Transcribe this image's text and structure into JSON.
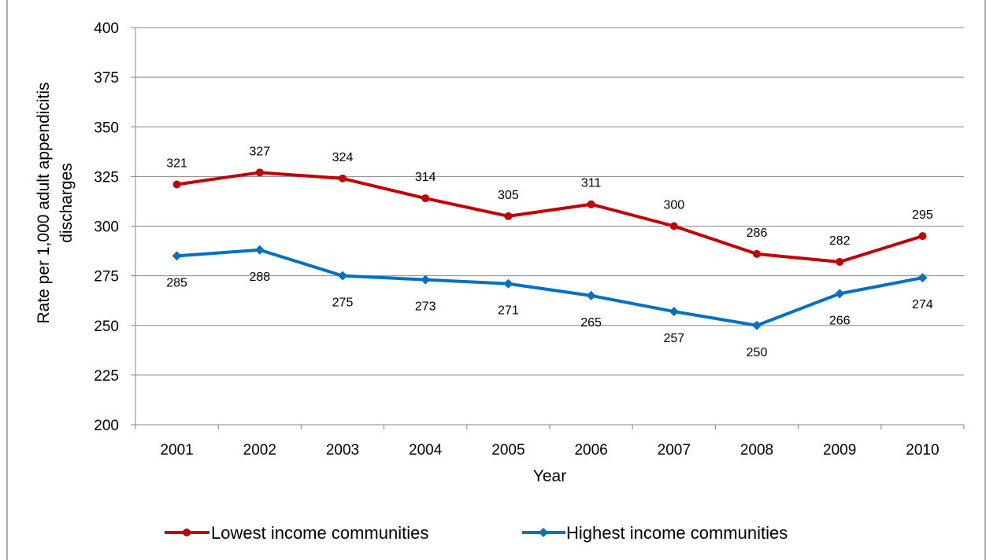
{
  "chart_data": {
    "type": "line",
    "title": "",
    "xlabel": "Year",
    "ylabel_lines": [
      "Rate per 1,000 adult appendicitis",
      "discharges"
    ],
    "categories": [
      "2001",
      "2002",
      "2003",
      "2004",
      "2005",
      "2006",
      "2007",
      "2008",
      "2009",
      "2010"
    ],
    "ylim": [
      200,
      400
    ],
    "yticks": [
      200,
      225,
      250,
      275,
      300,
      325,
      350,
      375,
      400
    ],
    "grid": true,
    "legend_position": "bottom",
    "series": [
      {
        "name": "Lowest income communities",
        "color": "#C00000",
        "marker": "circle",
        "values": [
          321,
          327,
          324,
          314,
          305,
          311,
          300,
          286,
          282,
          295
        ],
        "label_position": "above"
      },
      {
        "name": "Highest income communities",
        "color": "#0070C0",
        "marker": "diamond",
        "values": [
          285,
          288,
          275,
          273,
          271,
          265,
          257,
          250,
          266,
          274
        ],
        "label_position": "below"
      }
    ]
  }
}
